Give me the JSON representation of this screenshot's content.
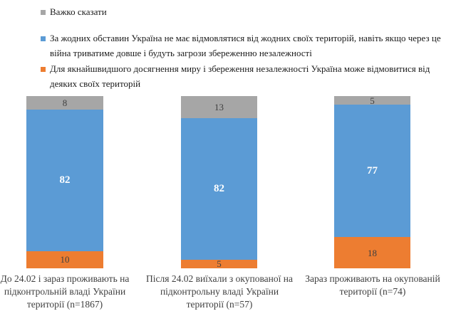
{
  "chart_data": {
    "type": "bar",
    "variant": "stacked-column-100",
    "unit": "percent",
    "ylim": [
      0,
      100
    ],
    "grid": false,
    "axes_visible": false,
    "legend_position": "top-left",
    "categories": [
      "До 24.02 і зараз проживають на\nпідконтрольній владі України\nтериторії (n=1867)",
      "Після 24.02 виїхали з окупованої на\nпідконтрольну владі України\nтериторії (n=57)",
      "Зараз проживають на окупованій\nтериторії (n=74)"
    ],
    "series": [
      {
        "name": "Для якнайшвидшого досягнення миру і збереження незалежності Україна може відмовитися від деяких своїх територій",
        "color": "#ED7D31",
        "stack_position": "bottom",
        "values": [
          10,
          5,
          18
        ]
      },
      {
        "name": "За жодних обставин Україна не має відмовлятися від жодних своїх територій, навіть якщо через це війна триватиме довше і будуть загрози збереженню незалежності",
        "color": "#5B9BD5",
        "stack_position": "middle",
        "values": [
          82,
          82,
          77
        ]
      },
      {
        "name": "Важко сказати",
        "color": "#A6A6A6",
        "stack_position": "top",
        "values": [
          8,
          13,
          5
        ]
      }
    ],
    "value_label_colors": {
      "on_blue": "#FFFFFF",
      "on_orange": "#404040",
      "on_gray": "#404040"
    }
  },
  "legend": {
    "items": [
      {
        "label": "Важко сказати",
        "color": "#A6A6A6"
      },
      {
        "label": "За жодних обставин Україна не має відмовлятися від жодних своїх територій, навіть якщо через це\nвійна триватиме довше і будуть загрози збереженню незалежності",
        "color": "#5B9BD5"
      },
      {
        "label": "Для якнайшвидшого досягнення миру і збереження незалежності Україна може відмовитися від\nдеяких своїх територій",
        "color": "#ED7D31"
      }
    ]
  }
}
